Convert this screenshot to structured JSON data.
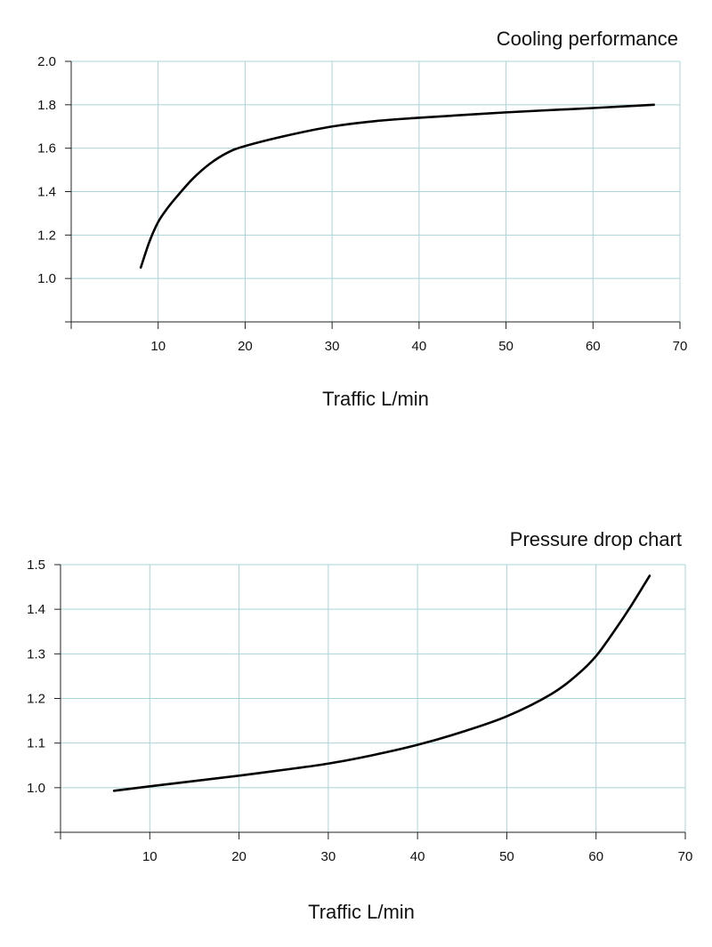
{
  "colors": {
    "grid": "#a9d4d8",
    "axis": "#222222",
    "curve": "#000000",
    "text": "#111111"
  },
  "chart_data": [
    {
      "type": "line",
      "title": "Cooling performance",
      "xlabel": "Traffic L/min",
      "ylabel": "",
      "xlim": [
        0,
        70
      ],
      "ylim": [
        0.8,
        2.0
      ],
      "xticks": [
        10,
        20,
        30,
        40,
        50,
        60,
        70
      ],
      "xtick_labels": [
        "10",
        "20",
        "30",
        "40",
        "50",
        "60",
        "70"
      ],
      "yticks": [
        1.0,
        1.2,
        1.4,
        1.6,
        1.8,
        2.0
      ],
      "ytick_labels": [
        "1.0",
        "1.2",
        "1.4",
        "1.6",
        "1.8",
        "2.0"
      ],
      "grid": true,
      "series": [
        {
          "x": [
            8,
            9,
            10,
            11,
            12,
            14,
            16,
            18,
            20,
            25,
            30,
            35,
            40,
            50,
            60,
            67
          ],
          "y": [
            1.05,
            1.17,
            1.26,
            1.32,
            1.37,
            1.46,
            1.53,
            1.58,
            1.61,
            1.66,
            1.7,
            1.725,
            1.74,
            1.765,
            1.785,
            1.8
          ]
        }
      ]
    },
    {
      "type": "line",
      "title": "Pressure drop chart",
      "xlabel": "Traffic L/min",
      "ylabel": "",
      "xlim": [
        0,
        70
      ],
      "ylim": [
        0.9,
        1.5
      ],
      "xticks": [
        10,
        20,
        30,
        40,
        50,
        60,
        70
      ],
      "xtick_labels": [
        "10",
        "20",
        "30",
        "40",
        "50",
        "60",
        "70"
      ],
      "yticks": [
        1.0,
        1.1,
        1.2,
        1.3,
        1.4,
        1.5
      ],
      "ytick_labels": [
        "1.0",
        "1.1",
        "1.2",
        "1.3",
        "1.4",
        "1.5"
      ],
      "grid": true,
      "series": [
        {
          "x": [
            6,
            10,
            20,
            25,
            30,
            35,
            40,
            45,
            50,
            55,
            58,
            60,
            62,
            64,
            66
          ],
          "y": [
            0.993,
            1.003,
            1.027,
            1.04,
            1.054,
            1.073,
            1.096,
            1.125,
            1.16,
            1.21,
            1.255,
            1.295,
            1.35,
            1.41,
            1.475
          ]
        }
      ]
    }
  ]
}
